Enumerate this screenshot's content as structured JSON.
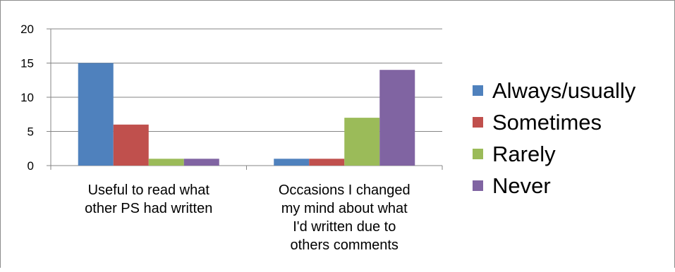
{
  "chart_data": {
    "type": "bar",
    "title": "",
    "xlabel": "",
    "ylabel": "",
    "ylim": [
      0,
      20
    ],
    "yticks": [
      0,
      5,
      10,
      15,
      20
    ],
    "grid": true,
    "legend_position": "right",
    "categories": [
      [
        "Useful to read what",
        "other PS had written"
      ],
      [
        "Occasions I changed",
        "my mind about what",
        "I'd written due to",
        "others comments"
      ]
    ],
    "series": [
      {
        "name": "Always/usually",
        "color": "#4F81BD",
        "values": [
          15,
          1
        ]
      },
      {
        "name": "Sometimes",
        "color": "#C0504D",
        "values": [
          6,
          1
        ]
      },
      {
        "name": "Rarely",
        "color": "#9BBB59",
        "values": [
          1,
          7
        ]
      },
      {
        "name": "Never",
        "color": "#8064A2",
        "values": [
          1,
          14
        ]
      }
    ]
  }
}
